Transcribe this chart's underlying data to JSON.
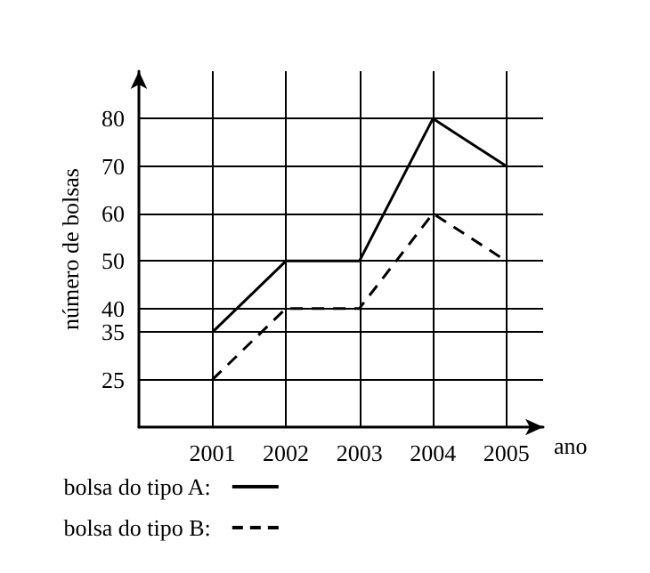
{
  "chart_data": {
    "type": "line",
    "xlabel": "ano",
    "ylabel": "número de bolsas",
    "x": [
      2001,
      2002,
      2003,
      2004,
      2005
    ],
    "series": [
      {
        "name": "bolsa do tipo A:",
        "color": "#000000",
        "line_style": "solid",
        "values": [
          35,
          50,
          50,
          80,
          70
        ]
      },
      {
        "name": "bolsa do tipo B:",
        "color": "#000000",
        "line_style": "dashed",
        "values": [
          25,
          40,
          40,
          60,
          50
        ]
      }
    ],
    "xlim": [
      2000,
      2005.5
    ],
    "xticks": [
      2001,
      2002,
      2003,
      2004,
      2005
    ],
    "ylim": [
      15,
      90
    ],
    "yticks": [
      25,
      35,
      40,
      50,
      60,
      70,
      80
    ],
    "grid": true,
    "legend": "bottom left",
    "marker": "none"
  }
}
